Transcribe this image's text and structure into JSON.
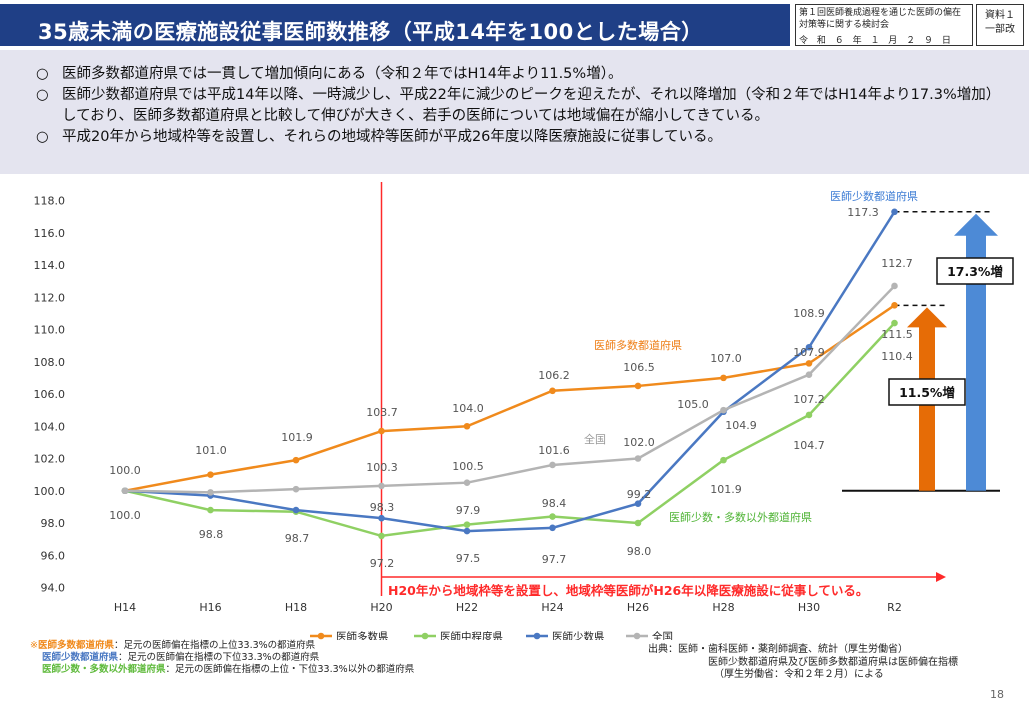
{
  "header": {
    "title": "35歳未満の医療施設従事医師数推移（平成14年を100とした場合）",
    "meeting_name": "第１回医師養成過程を通じた医師の偏在対策等に関する検討会",
    "meeting_date": "令 和 ６ 年 １ 月 ２ ９ 日",
    "doc_label": "資料１",
    "doc_sub": "一部改"
  },
  "summary": {
    "mark": "○",
    "items": [
      "医師多数都道府県では一貫して増加傾向にある（令和２年ではH14年より11.5%増）。",
      "医師少数都道府県では平成14年以降、一時減少し、平成22年に減少のピークを迎えたが、それ以降増加（令和２年ではH14年より17.3%増加）しており、医師多数都道府県と比較して伸びが大きく、若手の医師については地域偏在が縮小してきている。",
      "平成20年から地域枠等を設置し、それらの地域枠等医師が平成26年度以降医療施設に従事している。"
    ]
  },
  "chart_data": {
    "type": "line",
    "title": "",
    "xlabel": "",
    "ylabel": "",
    "categories": [
      "H14",
      "H16",
      "H18",
      "H20",
      "H22",
      "H24",
      "H26",
      "H28",
      "H30",
      "R2"
    ],
    "ylim": [
      94,
      118
    ],
    "yticks": [
      "94.0",
      "96.0",
      "98.0",
      "100.0",
      "102.0",
      "104.0",
      "106.0",
      "108.0",
      "110.0",
      "112.0",
      "114.0",
      "116.0",
      "118.0"
    ],
    "series": [
      {
        "name": "医師多数県",
        "color": "#f08a1c",
        "values": [
          100.0,
          101.0,
          101.9,
          103.7,
          104.0,
          106.2,
          106.5,
          107.0,
          107.9,
          111.5
        ]
      },
      {
        "name": "医師中程度県",
        "color": "#8fd063",
        "values": [
          100.0,
          98.8,
          98.7,
          97.2,
          97.9,
          98.4,
          98.0,
          101.9,
          104.7,
          110.4
        ]
      },
      {
        "name": "医師少数県",
        "color": "#4a78c2",
        "values": [
          100.0,
          99.7,
          98.8,
          98.3,
          97.5,
          97.7,
          99.2,
          104.9,
          108.9,
          117.3
        ]
      },
      {
        "name": "全国",
        "color": "#b4b4b4",
        "values": [
          100.0,
          99.9,
          100.1,
          100.3,
          100.5,
          101.6,
          102.0,
          105.0,
          107.2,
          112.7
        ]
      }
    ],
    "data_labels": [
      {
        "text": "100.0"
      },
      {
        "text": "101.0"
      },
      {
        "text": "101.9"
      },
      {
        "text": "103.7"
      },
      {
        "text": "104.0"
      },
      {
        "text": "106.2"
      },
      {
        "text": "106.5"
      },
      {
        "text": "107.0"
      },
      {
        "text": "107.9"
      },
      {
        "text": "111.5"
      },
      {
        "text": "100.0"
      },
      {
        "text": "98.8"
      },
      {
        "text": "98.7"
      },
      {
        "text": "97.2"
      },
      {
        "text": "97.9"
      },
      {
        "text": "98.4"
      },
      {
        "text": "98.0"
      },
      {
        "text": "101.9"
      },
      {
        "text": "104.7"
      },
      {
        "text": "110.4"
      },
      {
        "text": "98.3"
      },
      {
        "text": "97.5"
      },
      {
        "text": "97.7"
      },
      {
        "text": "99.2"
      },
      {
        "text": "108.9"
      },
      {
        "text": "117.3"
      },
      {
        "text": "100.3"
      },
      {
        "text": "100.5"
      },
      {
        "text": "101.6"
      },
      {
        "text": "102.0"
      },
      {
        "text": "105.0"
      },
      {
        "text": "104.9"
      },
      {
        "text": "107.2"
      },
      {
        "text": "112.7"
      }
    ],
    "annotations": {
      "series_labels": [
        "医師少数都道府県",
        "医師多数都道府県",
        "全国",
        "医師少数・多数以外都道府県"
      ],
      "policy_note": "H20年から地域枠等を設置し、地域枠等医師がH26年以降医療施設に従事している。",
      "increase_many": "11.5%増",
      "increase_few": "17.3%増"
    },
    "colors": {
      "marker_line": "#ff2a2a",
      "arrow_orange": "#e66c06",
      "arrow_blue": "#4d8ad6"
    }
  },
  "footnotes": {
    "mark": "※",
    "lines": [
      {
        "label": "医師多数都道府県",
        "label_color": "#f08a1c",
        "text": "：足元の医師偏在指標の上位33.3%の都道府県"
      },
      {
        "label": "医師少数都道府県",
        "label_color": "#4a78c2",
        "text": "：足元の医師偏在指標の下位33.3%の都道府県"
      },
      {
        "label": "医師少数・多数以外都道府県",
        "label_color": "#5fba3c",
        "text": "：足元の医師偏在指標の上位・下位33.3%以外の都道府県"
      }
    ]
  },
  "source": {
    "lines": [
      "出典：医師・歯科医師・薬剤師調査、統計（厚生労働省）",
      "医師少数都道府県及び医師多数都道府県は医師偏在指標",
      "（厚生労働省：令和２年２月）による"
    ]
  },
  "page_number": "18"
}
